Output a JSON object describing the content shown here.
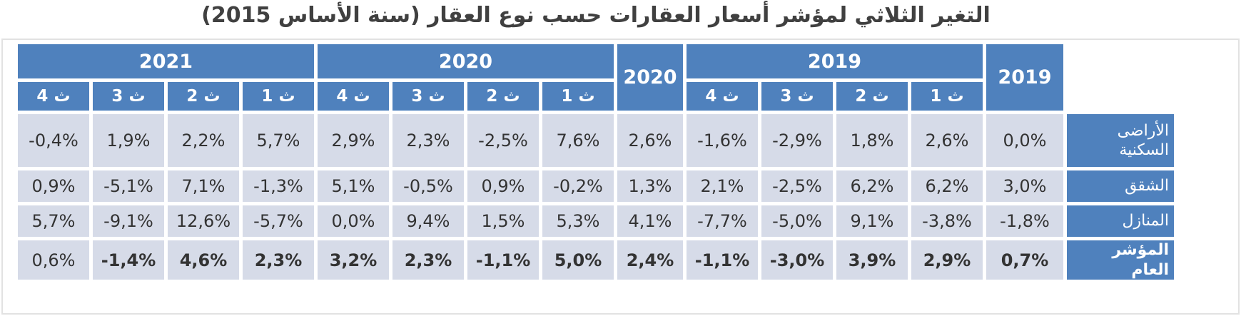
{
  "title": "التغير الثلاثي لمؤشر أسعار العقارات حسب نوع العقار (سنة الأساس 2015)",
  "colors": {
    "accent_blue": "#4F81BD",
    "cell_background": "#D6DBE8",
    "value_text": "#333333",
    "title_text": "#404040"
  },
  "header": {
    "year_2021": "2021",
    "year_2020_group": "2020",
    "year_2020_annual": "2020",
    "year_2019_group": "2019",
    "year_2019_annual": "2019",
    "quarters_rtl": [
      "ث 1",
      "ث 2",
      "ث 3",
      "ث 4"
    ]
  },
  "rows": [
    {
      "label": "الأراضى السكنية",
      "bold": false,
      "cells_rtl": [
        "0,0%",
        "2,6%",
        "1,8%",
        "-2,9%",
        "-1,6%",
        "2,6%",
        "7,6%",
        "-2,5%",
        "2,3%",
        "2,9%",
        "5,7%",
        "2,2%",
        "1,9%",
        "-0,4%"
      ]
    },
    {
      "label": "الشقق",
      "bold": false,
      "cells_rtl": [
        "3,0%",
        "6,2%",
        "6,2%",
        "-2,5%",
        "2,1%",
        "1,3%",
        "-0,2%",
        "0,9%",
        "-0,5%",
        "5,1%",
        "-1,3%",
        "7,1%",
        "-5,1%",
        "0,9%"
      ]
    },
    {
      "label": "المنازل",
      "bold": false,
      "cells_rtl": [
        "-1,8%",
        "-3,8%",
        "9,1%",
        "-5,0%",
        "-7,7%",
        "4,1%",
        "5,3%",
        "1,5%",
        "9,4%",
        "0,0%",
        "-5,7%",
        "12,6%",
        "-9,1%",
        "5,7%"
      ]
    },
    {
      "label": "المؤشر العام",
      "bold": true,
      "regular_cells_rtl": [
        13
      ],
      "cells_rtl": [
        "0,7%",
        "2,9%",
        "3,9%",
        "-3,0%",
        "-1,1%",
        "2,4%",
        "5,0%",
        "-1,1%",
        "2,3%",
        "3,2%",
        "2,3%",
        "4,6%",
        "-1,4%",
        "0,6%"
      ]
    }
  ],
  "chart_data": {
    "type": "table",
    "title": "التغير الثلاثي لمؤشر أسعار العقارات حسب نوع العقار (سنة الأساس 2015)",
    "unit": "%",
    "base_year": "2015",
    "columns_ltr": [
      "2021 ث 4",
      "2021 ث 3",
      "2021 ث 2",
      "2021 ث 1",
      "2020 ث 4",
      "2020 ث 3",
      "2020 ث 2",
      "2020 ث 1",
      "2020",
      "2019 ث 4",
      "2019 ث 3",
      "2019 ث 2",
      "2019 ث 1",
      "2019"
    ],
    "rows": [
      {
        "label": "الأراضى السكنية",
        "values_ltr": [
          -0.4,
          1.9,
          2.2,
          5.7,
          2.9,
          2.3,
          -2.5,
          7.6,
          2.6,
          -1.6,
          -2.9,
          1.8,
          2.6,
          0.0
        ]
      },
      {
        "label": "الشقق",
        "values_ltr": [
          0.9,
          -5.1,
          7.1,
          -1.3,
          5.1,
          -0.5,
          0.9,
          -0.2,
          1.3,
          2.1,
          -2.5,
          6.2,
          6.2,
          3.0
        ]
      },
      {
        "label": "المنازل",
        "values_ltr": [
          5.7,
          -9.1,
          12.6,
          -5.7,
          0.0,
          9.4,
          1.5,
          5.3,
          4.1,
          -7.7,
          -5.0,
          9.1,
          -3.8,
          -1.8
        ]
      },
      {
        "label": "المؤشر العام",
        "values_ltr": [
          0.6,
          -1.4,
          4.6,
          2.3,
          3.2,
          2.3,
          -1.1,
          5.0,
          2.4,
          -1.1,
          -3.0,
          3.9,
          2.9,
          0.7
        ]
      }
    ]
  }
}
